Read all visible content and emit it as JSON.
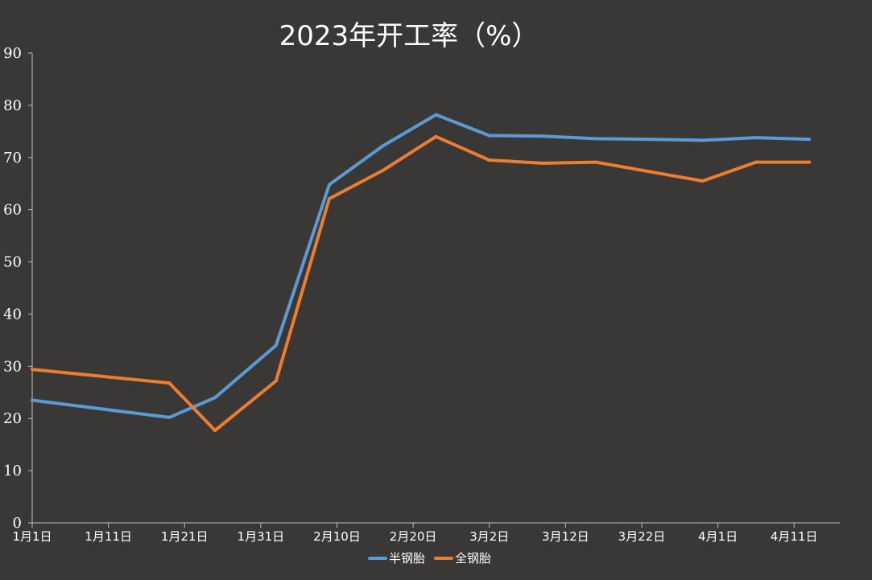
{
  "chart_data": {
    "type": "line",
    "title": "2023年开工率（%）",
    "xlabel": "",
    "ylabel": "",
    "ylim": [
      0,
      90
    ],
    "yticks": [
      0,
      10,
      20,
      30,
      40,
      50,
      60,
      70,
      80,
      90
    ],
    "xlim": [
      "2023-01-01",
      "2023-04-17"
    ],
    "xticks": [
      {
        "date": "2023-01-01",
        "label": "1月1日"
      },
      {
        "date": "2023-01-11",
        "label": "1月11日"
      },
      {
        "date": "2023-01-21",
        "label": "1月21日"
      },
      {
        "date": "2023-01-31",
        "label": "1月31日"
      },
      {
        "date": "2023-02-10",
        "label": "2月10日"
      },
      {
        "date": "2023-02-20",
        "label": "2月20日"
      },
      {
        "date": "2023-03-02",
        "label": "3月2日"
      },
      {
        "date": "2023-03-12",
        "label": "3月12日"
      },
      {
        "date": "2023-03-22",
        "label": "3月22日"
      },
      {
        "date": "2023-04-01",
        "label": "4月1日"
      },
      {
        "date": "2023-04-11",
        "label": "4月11日"
      }
    ],
    "grid": false,
    "legend_position": "bottom",
    "series": [
      {
        "name": "半钢胎",
        "color": "#5b9bd5",
        "points": [
          {
            "x": "2023-01-01",
            "y": 23.5
          },
          {
            "x": "2023-01-19",
            "y": 20.2
          },
          {
            "x": "2023-01-25",
            "y": 24.0
          },
          {
            "x": "2023-02-02",
            "y": 34.0
          },
          {
            "x": "2023-02-09",
            "y": 64.8
          },
          {
            "x": "2023-02-16",
            "y": 72.2
          },
          {
            "x": "2023-02-23",
            "y": 78.2
          },
          {
            "x": "2023-03-02",
            "y": 74.2
          },
          {
            "x": "2023-03-09",
            "y": 74.1
          },
          {
            "x": "2023-03-16",
            "y": 73.6
          },
          {
            "x": "2023-03-23",
            "y": 73.5
          },
          {
            "x": "2023-03-30",
            "y": 73.3
          },
          {
            "x": "2023-04-06",
            "y": 73.8
          },
          {
            "x": "2023-04-13",
            "y": 73.5
          }
        ]
      },
      {
        "name": "全钢胎",
        "color": "#ed7d31",
        "points": [
          {
            "x": "2023-01-01",
            "y": 29.4
          },
          {
            "x": "2023-01-19",
            "y": 26.8
          },
          {
            "x": "2023-01-25",
            "y": 17.7
          },
          {
            "x": "2023-02-02",
            "y": 27.2
          },
          {
            "x": "2023-02-09",
            "y": 62.1
          },
          {
            "x": "2023-02-16",
            "y": 67.5
          },
          {
            "x": "2023-02-23",
            "y": 74.0
          },
          {
            "x": "2023-03-02",
            "y": 69.5
          },
          {
            "x": "2023-03-09",
            "y": 68.9
          },
          {
            "x": "2023-03-16",
            "y": 69.1
          },
          {
            "x": "2023-03-23",
            "y": 67.3
          },
          {
            "x": "2023-03-30",
            "y": 65.5
          },
          {
            "x": "2023-04-06",
            "y": 69.1
          },
          {
            "x": "2023-04-13",
            "y": 69.1
          }
        ]
      }
    ]
  }
}
